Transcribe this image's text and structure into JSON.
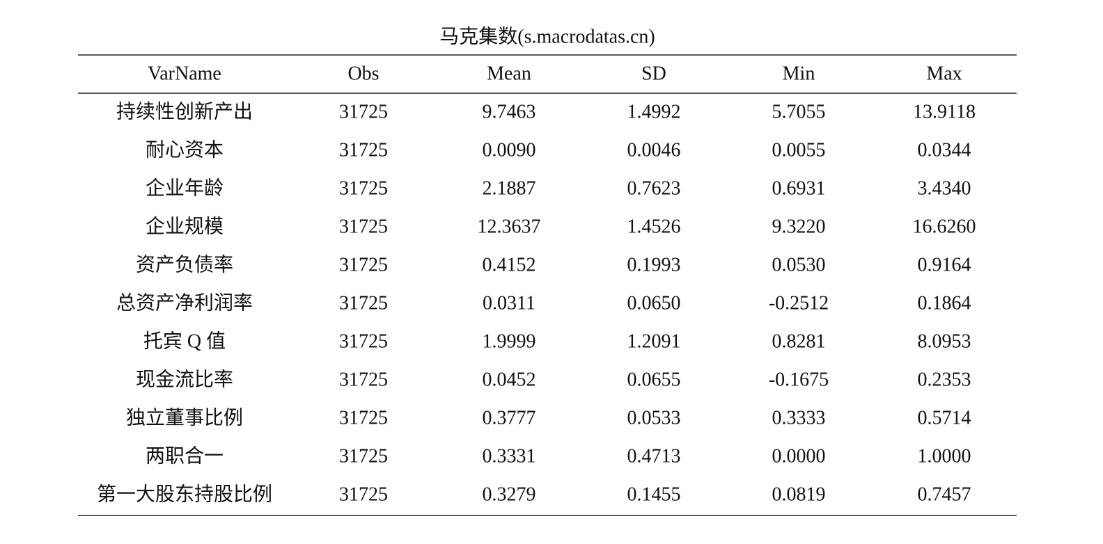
{
  "title": "马克集数(s.macrodatas.cn)",
  "table": {
    "header": [
      "VarName",
      "Obs",
      "Mean",
      "SD",
      "Min",
      "Max"
    ],
    "rows": [
      [
        "持续性创新产出",
        "31725",
        "9.7463",
        "1.4992",
        "5.7055",
        "13.9118"
      ],
      [
        "耐心资本",
        "31725",
        "0.0090",
        "0.0046",
        "0.0055",
        "0.0344"
      ],
      [
        "企业年龄",
        "31725",
        "2.1887",
        "0.7623",
        "0.6931",
        "3.4340"
      ],
      [
        "企业规模",
        "31725",
        "12.3637",
        "1.4526",
        "9.3220",
        "16.6260"
      ],
      [
        "资产负债率",
        "31725",
        "0.4152",
        "0.1993",
        "0.0530",
        "0.9164"
      ],
      [
        "总资产净利润率",
        "31725",
        "0.0311",
        "0.0650",
        "-0.2512",
        "0.1864"
      ],
      [
        "托宾 Q 值",
        "31725",
        "1.9999",
        "1.2091",
        "0.8281",
        "8.0953"
      ],
      [
        "现金流比率",
        "31725",
        "0.0452",
        "0.0655",
        "-0.1675",
        "0.2353"
      ],
      [
        "独立董事比例",
        "31725",
        "0.3777",
        "0.0533",
        "0.3333",
        "0.5714"
      ],
      [
        "两职合一",
        "31725",
        "0.3331",
        "0.4713",
        "0.0000",
        "1.0000"
      ],
      [
        "第一大股东持股比例",
        "31725",
        "0.3279",
        "0.1455",
        "0.0819",
        "0.7457"
      ]
    ]
  }
}
